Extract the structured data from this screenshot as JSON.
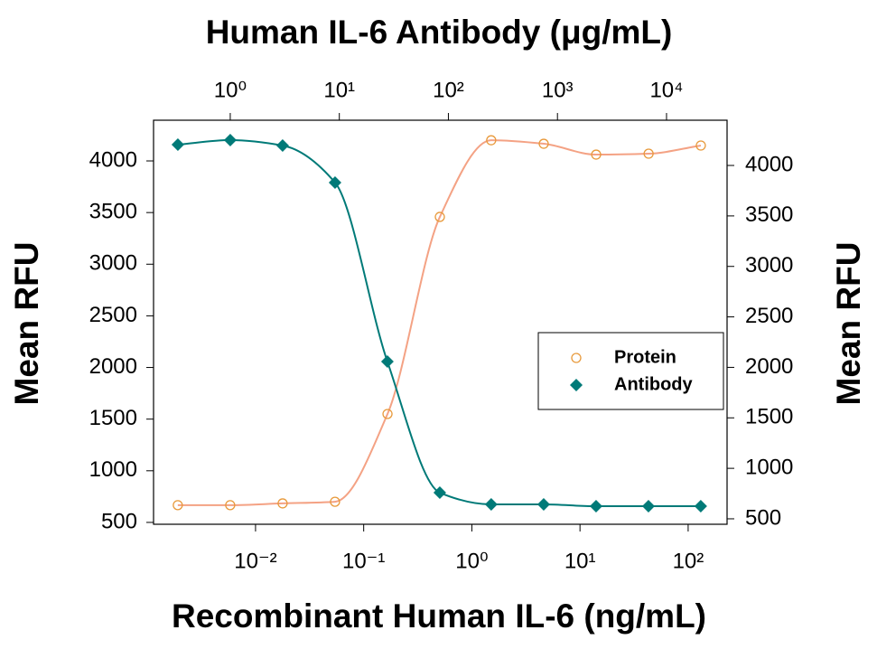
{
  "chart_data": {
    "type": "scatter",
    "title": "Human IL-6 Antibody (μg/mL)",
    "xlabel": "Recombinant Human IL-6 (ng/mL)",
    "ylabel": "Mean RFU",
    "y2label": "Mean RFU",
    "xscale": "log",
    "x2scale": "log",
    "xlim": [
      0.00114,
      229
    ],
    "xticks": [
      {
        "value": 0.01,
        "label": "10⁻²"
      },
      {
        "value": 0.1,
        "label": "10⁻¹"
      },
      {
        "value": 1,
        "label": "10⁰"
      },
      {
        "value": 10,
        "label": "10¹"
      },
      {
        "value": 100,
        "label": "10²"
      }
    ],
    "x2lim": [
      0.198,
      35900
    ],
    "x2ticks": [
      {
        "value": 1,
        "label": "10⁰"
      },
      {
        "value": 10,
        "label": "10¹"
      },
      {
        "value": 100,
        "label": "10²"
      },
      {
        "value": 1000,
        "label": "10³"
      },
      {
        "value": 10000,
        "label": "10⁴"
      }
    ],
    "ylim": [
      482,
      4394
    ],
    "yticks": [
      500,
      1000,
      1500,
      2000,
      2500,
      3000,
      3500,
      4000
    ],
    "y2lim": [
      446,
      4448
    ],
    "y2ticks": [
      500,
      1000,
      1500,
      2000,
      2500,
      3000,
      3500,
      4000
    ],
    "legend": "center right",
    "series": [
      {
        "name": "Protein",
        "color": "#e89a3c",
        "line_color": "#f4a284",
        "marker": "open-circle",
        "x": [
          0.00191,
          0.00583,
          0.0178,
          0.0543,
          0.166,
          0.506,
          1.51,
          4.62,
          14.1,
          43.1,
          131
        ],
        "values": [
          667,
          667,
          684,
          700,
          1550,
          3458,
          4200,
          4166,
          4061,
          4070,
          4149
        ]
      },
      {
        "name": "Antibody",
        "color": "#007a78",
        "line_color": "#007a78",
        "marker": "diamond",
        "xaxis": "x2",
        "axis": "y2",
        "x": [
          0.331,
          1,
          3.02,
          9.14,
          27.6,
          83.4,
          247,
          748,
          2260,
          6830,
          20600
        ],
        "values": [
          4206,
          4251,
          4197,
          3830,
          2057,
          759,
          643,
          643,
          625,
          625,
          625
        ]
      }
    ]
  }
}
